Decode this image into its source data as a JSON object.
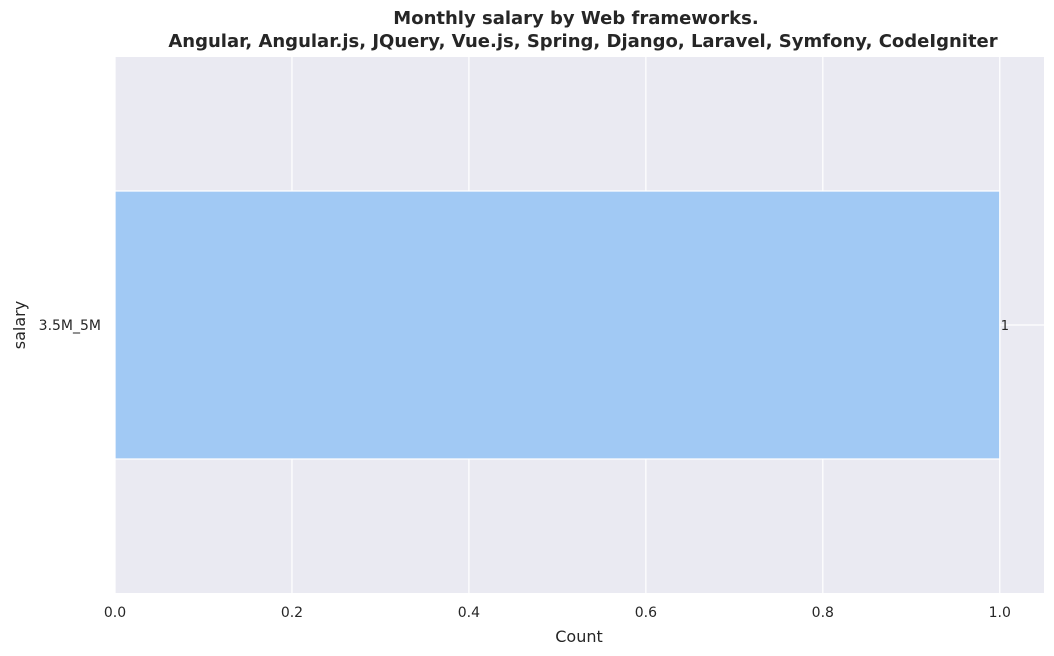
{
  "chart_data": {
    "type": "bar",
    "orientation": "horizontal",
    "title": "Monthly salary by Web frameworks.",
    "subtitle": "Angular, Angular.js, JQuery, Vue.js, Spring, Django, Laravel, Symfony, CodeIgniter",
    "xlabel": "Count",
    "ylabel": "salary",
    "categories": [
      "3.5M_5M"
    ],
    "values": [
      1
    ],
    "data_labels": [
      "1"
    ],
    "xlim": [
      0,
      1.05
    ],
    "xticks": [
      0.0,
      0.2,
      0.4,
      0.6,
      0.8,
      1.0
    ],
    "xtick_labels": [
      "0.0",
      "0.2",
      "0.4",
      "0.6",
      "0.8",
      "1.0"
    ],
    "grid": true,
    "colors": {
      "plot_background": "#EAEAF2",
      "grid": "#FFFFFF",
      "bar": "#A1C9F4",
      "text": "#262626"
    }
  }
}
